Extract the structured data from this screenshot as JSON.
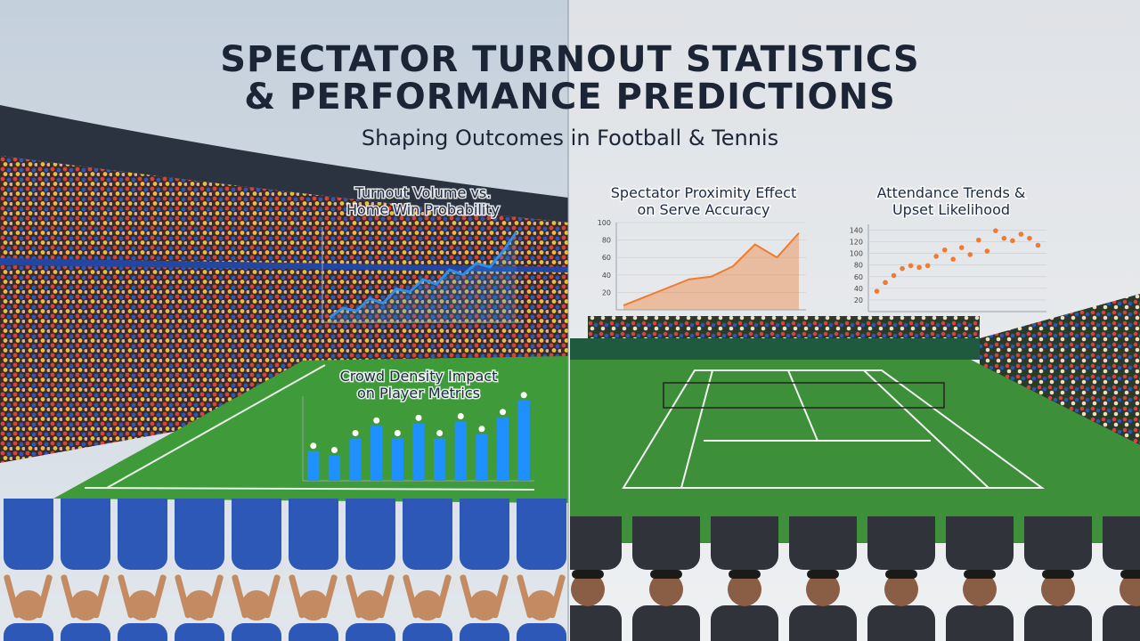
{
  "header": {
    "title_lines": [
      "SPECTATOR TURNOUT STATISTICS",
      "& PERFORMANCE PREDICTIONS"
    ],
    "subtitle": "Shaping Outcomes in Football & Tennis"
  },
  "chart_data": [
    {
      "type": "line",
      "title": [
        "Turnout Volume vs.",
        "Home Win Probability"
      ],
      "color": "#2f8fe8",
      "values": [
        5,
        15,
        12,
        25,
        20,
        35,
        32,
        45,
        40,
        55,
        50,
        62,
        58,
        75,
        95
      ],
      "ylim": [
        0,
        100
      ]
    },
    {
      "type": "bar",
      "title": [
        "Crowd Density Impact",
        "on Player Metrics"
      ],
      "color": "#1e90ff",
      "values": [
        35,
        30,
        50,
        65,
        50,
        68,
        50,
        70,
        55,
        75,
        95
      ],
      "ylim": [
        0,
        100
      ]
    },
    {
      "type": "area",
      "title": [
        "Spectator Proximity Effect",
        "on Serve Accuracy"
      ],
      "color": "#f07b2e",
      "values": [
        5,
        15,
        25,
        35,
        38,
        50,
        75,
        60,
        88
      ],
      "ylim": [
        0,
        100
      ],
      "yticks": [
        20,
        40,
        60,
        80,
        100
      ]
    },
    {
      "type": "scatter",
      "title": [
        "Attendance Trends &",
        "Upset Likelihood"
      ],
      "color": "#f07b2e",
      "x": [
        1,
        2,
        3,
        4,
        5,
        6,
        7,
        8,
        9,
        10,
        11,
        12,
        13,
        14,
        15,
        16,
        17,
        18,
        19,
        20
      ],
      "values": [
        35,
        50,
        62,
        74,
        79,
        76,
        79,
        95,
        106,
        90,
        110,
        98,
        123,
        104,
        139,
        126,
        122,
        133,
        126,
        114
      ],
      "xlim": [
        0,
        21
      ],
      "ylim": [
        0,
        150
      ],
      "yticks": [
        20,
        40,
        60,
        80,
        100,
        120,
        140
      ]
    }
  ]
}
